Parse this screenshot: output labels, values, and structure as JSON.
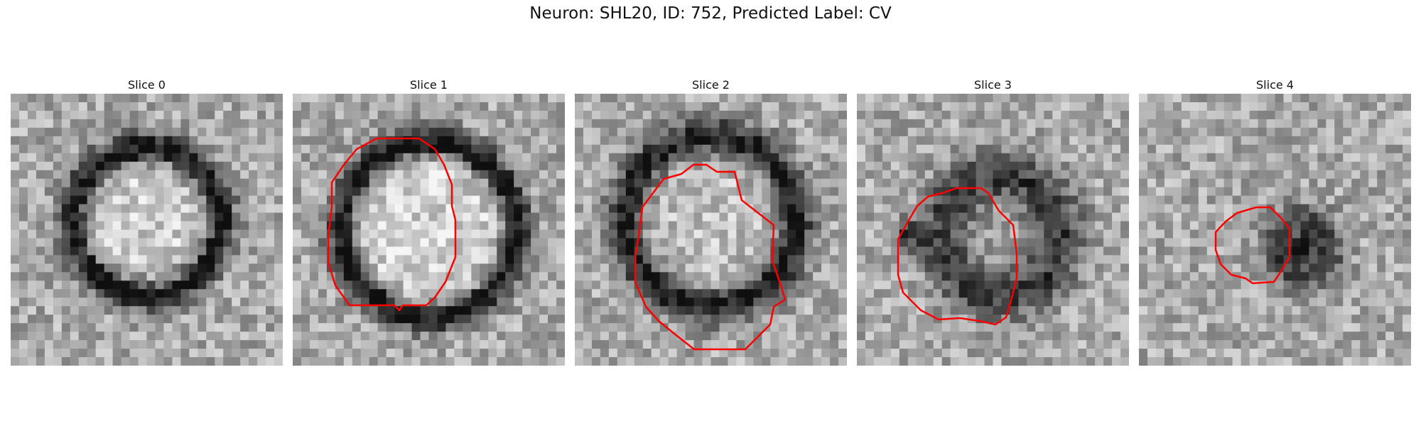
{
  "title": "Neuron: SHL20, ID: 752, Predicted Label: CV",
  "contour_color": "#ff0000",
  "panels": [
    {
      "label": "Slice 0",
      "has_contour": false
    },
    {
      "label": "Slice 1",
      "has_contour": true
    },
    {
      "label": "Slice 2",
      "has_contour": true
    },
    {
      "label": "Slice 3",
      "has_contour": true
    },
    {
      "label": "Slice 4",
      "has_contour": true
    }
  ]
}
